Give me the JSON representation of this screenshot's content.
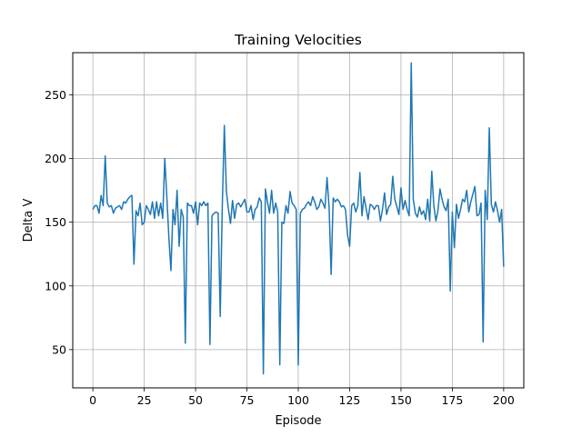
{
  "chart_data": {
    "type": "line",
    "title": "Training Velocities",
    "xlabel": "Episode",
    "ylabel": "Delta V",
    "xlim": [
      -9.8,
      209.8
    ],
    "ylim": [
      20,
      283
    ],
    "grid": true,
    "xticks": [
      0,
      25,
      50,
      75,
      100,
      125,
      150,
      175,
      200
    ],
    "yticks": [
      50,
      100,
      150,
      200,
      250
    ],
    "series_color": "#1f77b4",
    "series": [
      {
        "values": [
          160,
          163,
          163,
          157,
          171,
          163,
          202,
          165,
          162,
          163,
          157,
          161,
          162,
          163,
          160,
          166,
          165,
          168,
          170,
          171,
          117,
          159,
          155,
          165,
          148,
          150,
          163,
          160,
          156,
          166,
          153,
          166,
          155,
          165,
          153,
          200,
          170,
          138,
          112,
          160,
          148,
          175,
          131,
          160,
          154,
          55,
          165,
          163,
          163,
          157,
          166,
          148,
          165,
          163,
          166,
          163,
          165,
          54,
          155,
          157,
          158,
          157,
          76,
          162,
          226,
          174,
          160,
          149,
          167,
          153,
          164,
          165,
          162,
          165,
          168,
          158,
          158,
          163,
          152,
          160,
          162,
          169,
          166,
          31,
          176,
          166,
          157,
          175,
          157,
          165,
          158,
          38,
          150,
          149,
          163,
          157,
          174,
          165,
          163,
          160,
          38,
          157,
          160,
          161,
          164,
          166,
          163,
          170,
          166,
          160,
          162,
          168,
          165,
          161,
          185,
          162,
          109,
          169,
          166,
          168,
          166,
          162,
          163,
          160,
          140,
          131,
          163,
          165,
          158,
          163,
          189,
          155,
          170,
          161,
          152,
          164,
          163,
          160,
          163,
          163,
          151,
          160,
          173,
          156,
          162,
          164,
          186,
          168,
          162,
          156,
          177,
          160,
          167,
          160,
          155,
          275,
          168,
          157,
          154,
          162,
          156,
          159,
          152,
          168,
          151,
          190,
          163,
          151,
          159,
          176,
          168,
          162,
          159,
          168,
          96,
          158,
          130,
          164,
          153,
          160,
          168,
          166,
          175,
          158,
          166,
          172,
          178,
          155,
          156,
          165,
          56,
          175,
          152,
          224,
          164,
          158,
          166,
          159,
          150,
          160,
          115
        ]
      }
    ]
  }
}
